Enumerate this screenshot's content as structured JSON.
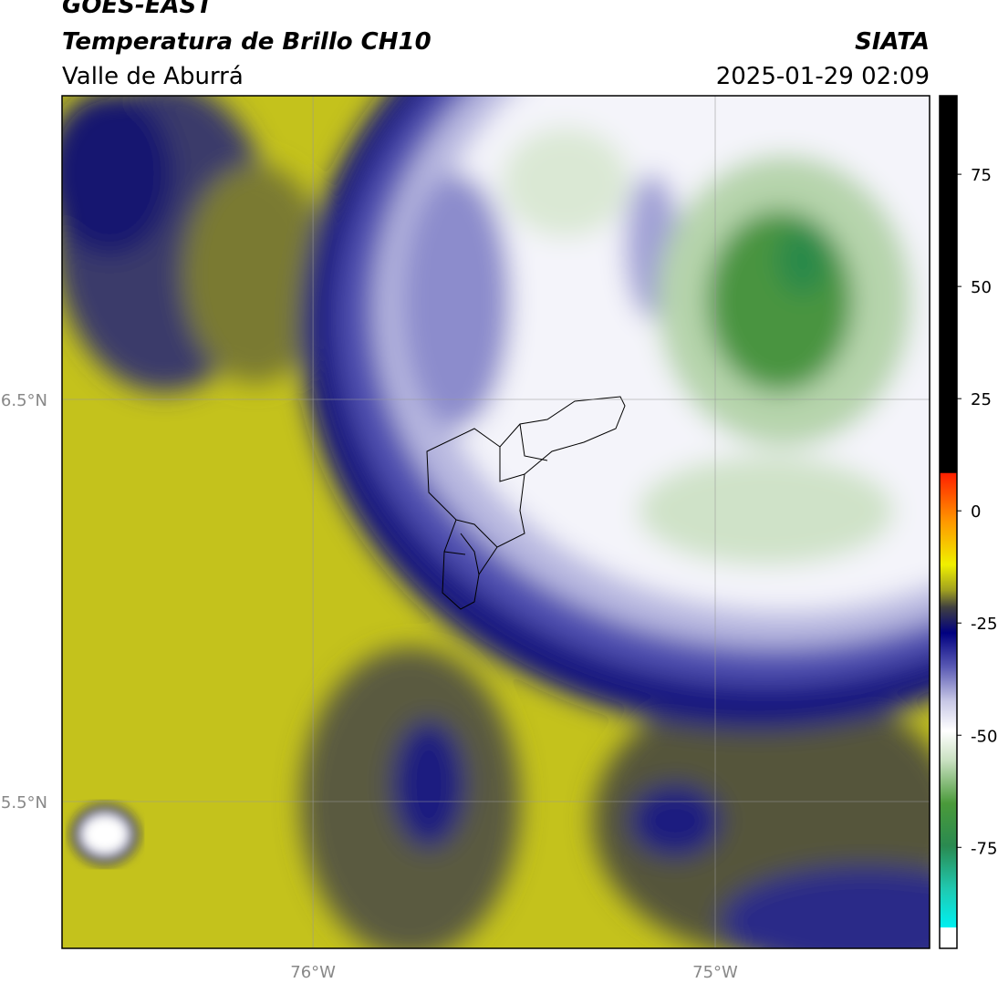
{
  "header": {
    "satellite": "GOES-EAST",
    "product": "Temperatura de Brillo CH10",
    "region": "Valle de Aburrá",
    "source": "SIATA",
    "datetime": "2025-01-29 02:09"
  },
  "map": {
    "lonlim": [
      -76.624,
      -74.467
    ],
    "latlim": [
      5.135,
      7.255
    ],
    "xticks": [
      {
        "value": -76,
        "label": "76°W"
      },
      {
        "value": -75,
        "label": "75°W"
      }
    ],
    "yticks": [
      {
        "value": 6.5,
        "label": "6.5°N"
      },
      {
        "value": 5.5,
        "label": "5.5°N"
      }
    ]
  },
  "colorbar": {
    "lim": [
      -97.5,
      92.5
    ],
    "ticks": [
      75,
      50,
      25,
      0,
      -25,
      -50,
      -75
    ]
  }
}
